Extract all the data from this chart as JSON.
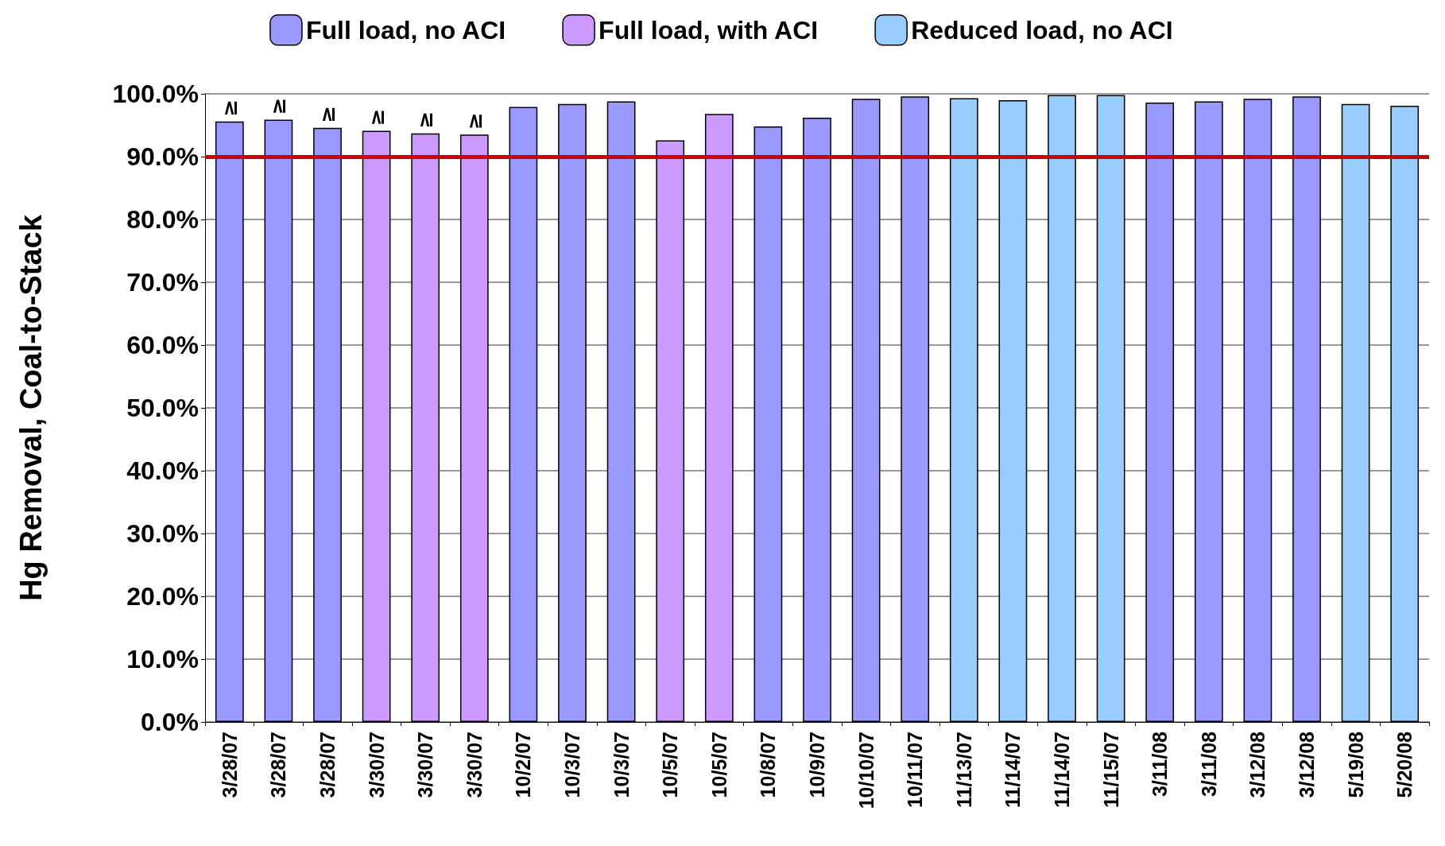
{
  "chart_data": {
    "type": "bar",
    "ylabel": "Hg Removal, Coal-to-Stack",
    "categories": [
      "3/28/07",
      "3/28/07",
      "3/28/07",
      "3/30/07",
      "3/30/07",
      "3/30/07",
      "10/2/07",
      "10/3/07",
      "10/3/07",
      "10/5/07",
      "10/5/07",
      "10/8/07",
      "10/9/07",
      "10/10/07",
      "10/11/07",
      "11/13/07",
      "11/14/07",
      "11/14/07",
      "11/15/07",
      "3/11/08",
      "3/11/08",
      "3/12/08",
      "3/12/08",
      "5/19/08",
      "5/20/08"
    ],
    "series": [
      {
        "name": "Full load, no ACI",
        "color": "#9999ff",
        "values": [
          95.6,
          95.9,
          94.6,
          null,
          null,
          null,
          97.9,
          98.4,
          98.8,
          null,
          null,
          94.8,
          96.2,
          99.2,
          99.6,
          null,
          null,
          null,
          null,
          98.6,
          98.8,
          99.2,
          99.6,
          null,
          null
        ],
        "value_labels": [
          "≥",
          "≥",
          "≥",
          null,
          null,
          null,
          null,
          null,
          null,
          null,
          null,
          null,
          null,
          null,
          null,
          null,
          null,
          null,
          null,
          null,
          null,
          null,
          null,
          null,
          null
        ]
      },
      {
        "name": "Full load, with ACI",
        "color": "#cc99ff",
        "values": [
          null,
          null,
          null,
          94.1,
          93.7,
          93.5,
          null,
          null,
          null,
          92.6,
          96.8,
          null,
          null,
          null,
          null,
          null,
          null,
          null,
          null,
          null,
          null,
          null,
          null,
          null,
          null
        ],
        "value_labels": [
          null,
          null,
          null,
          "≥",
          "≥",
          "≥",
          null,
          null,
          null,
          null,
          null,
          null,
          null,
          null,
          null,
          null,
          null,
          null,
          null,
          null,
          null,
          null,
          null,
          null,
          null
        ]
      },
      {
        "name": "Reduced load, no ACI",
        "color": "#99ccff",
        "values": [
          null,
          null,
          null,
          null,
          null,
          null,
          null,
          null,
          null,
          null,
          null,
          null,
          null,
          null,
          null,
          99.3,
          99.0,
          99.8,
          99.8,
          null,
          null,
          null,
          null,
          98.4,
          98.1
        ]
      }
    ],
    "ylim": [
      0,
      100
    ],
    "yticks": [
      {
        "value": 0,
        "label": "0.0%"
      },
      {
        "value": 10,
        "label": "10.0%"
      },
      {
        "value": 20,
        "label": "20.0%"
      },
      {
        "value": 30,
        "label": "30.0%"
      },
      {
        "value": 40,
        "label": "40.0%"
      },
      {
        "value": 50,
        "label": "50.0%"
      },
      {
        "value": 60,
        "label": "60.0%"
      },
      {
        "value": 70,
        "label": "70.0%"
      },
      {
        "value": 80,
        "label": "80.0%"
      },
      {
        "value": 90,
        "label": "90.0%"
      },
      {
        "value": 100,
        "label": "100.0%"
      }
    ],
    "ref_lines": [
      {
        "axis": "y",
        "value": 90,
        "color": "#cc0000"
      }
    ],
    "grid": "y",
    "legend": "top"
  }
}
